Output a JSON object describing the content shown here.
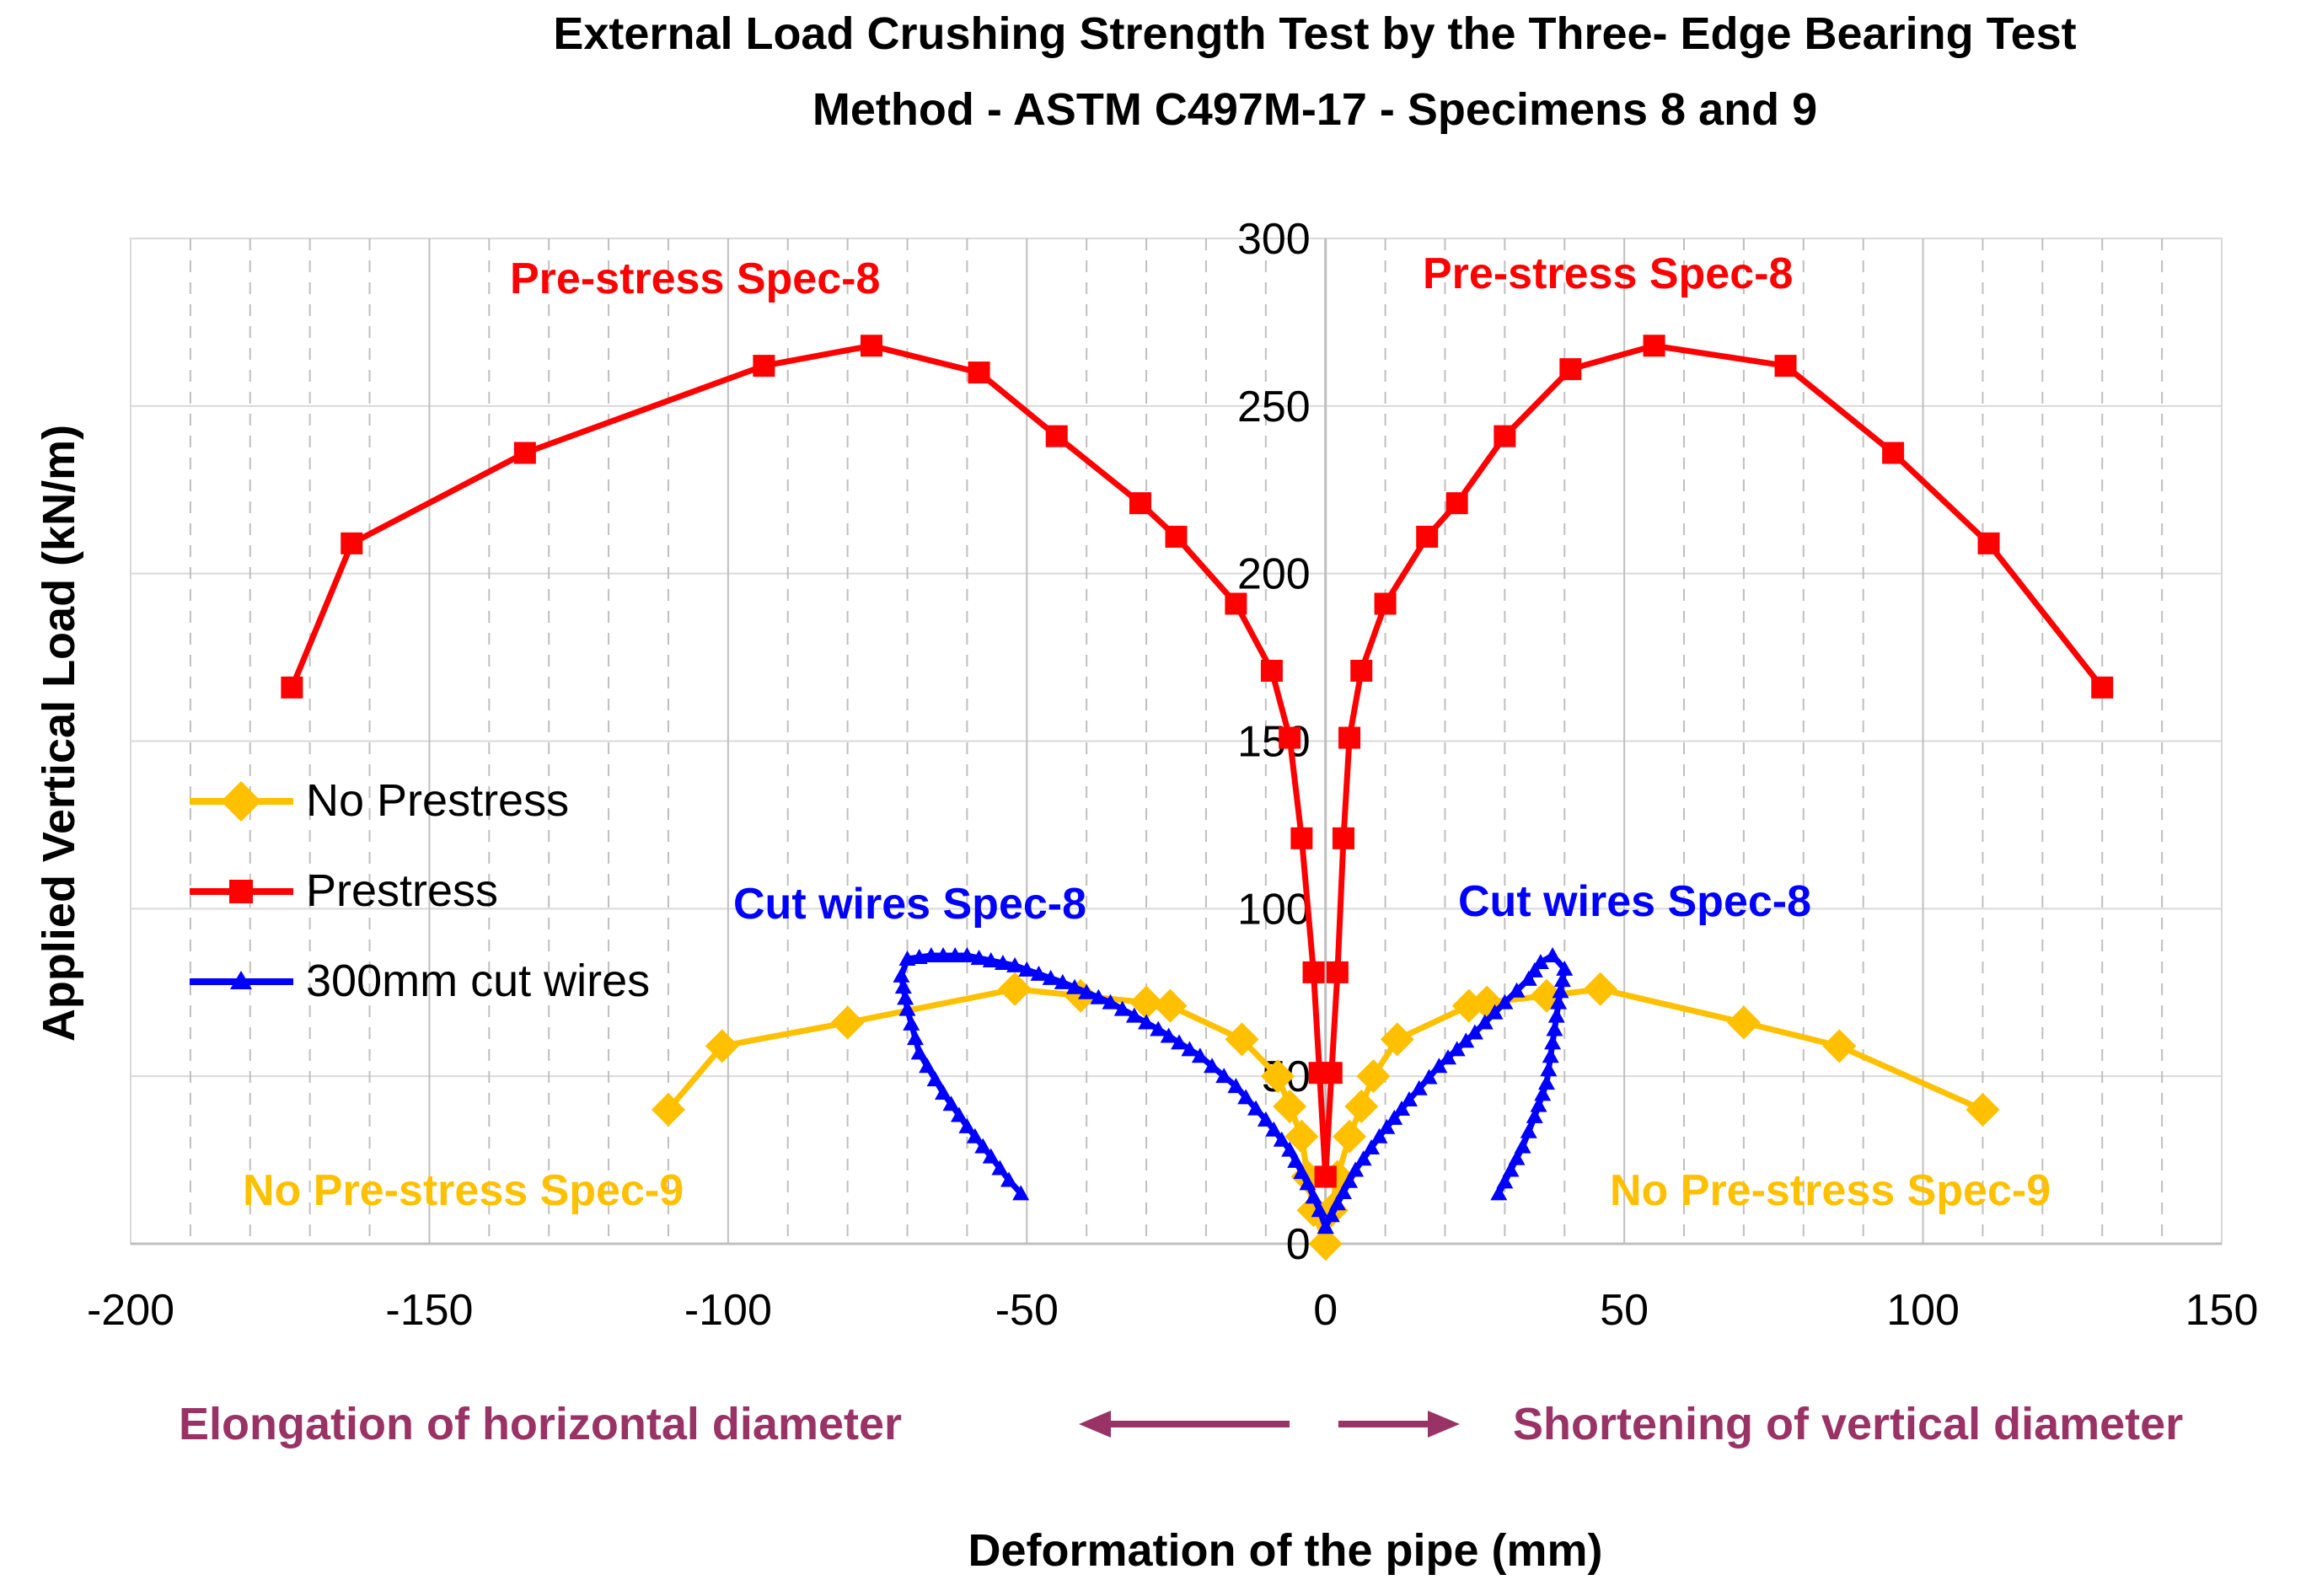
{
  "chart_data": {
    "type": "scatter",
    "title_line1": "External Load Crushing Strength Test by the Three- Edge Bearing Test",
    "title_line2": "Method - ASTM C497M-17 - Specimens 8 and 9",
    "xlabel": "Deformation of the pipe (mm)",
    "ylabel": "Applied Vertical Load (kN/m)",
    "xlim": [
      -200,
      150
    ],
    "ylim": [
      0,
      300
    ],
    "xticks": [
      -200,
      -150,
      -100,
      -50,
      0,
      50,
      100,
      150
    ],
    "yticks": [
      0,
      50,
      100,
      150,
      200,
      250,
      300
    ],
    "direction_left": "Elongation of horizontal diameter",
    "direction_right": "Shortening of vertical diameter",
    "annotations": {
      "prestress_left": "Pre-stress Spec-8",
      "prestress_right": "Pre-stress Spec-8",
      "cut_left": "Cut wires Spec-8",
      "cut_right": "Cut wires Spec-8",
      "noprestress_left": "No Pre-stress Spec-9",
      "noprestress_right": "No Pre-stress Spec-9"
    },
    "colors": {
      "no_prestress": "#FFC000",
      "prestress": "#FF0000",
      "cut_wires": "#0000FF",
      "direction": "#993366",
      "grid": "#BFBFBF"
    },
    "series": [
      {
        "name": "No Prestress",
        "marker": "diamond",
        "color": "#FFC000",
        "segments": [
          [
            [
              -110,
              40
            ],
            [
              -101,
              59
            ],
            [
              -80,
              66
            ],
            [
              -52,
              76
            ],
            [
              -41,
              74
            ],
            [
              -30,
              72
            ],
            [
              -26,
              71
            ],
            [
              -14,
              61
            ],
            [
              -8,
              50
            ],
            [
              -6,
              41
            ],
            [
              -4,
              32
            ],
            [
              -3,
              20
            ],
            [
              -2,
              10
            ],
            [
              0,
              0
            ]
          ],
          [
            [
              0,
              0
            ],
            [
              1,
              10
            ],
            [
              2,
              20
            ],
            [
              4,
              32
            ],
            [
              6,
              41
            ],
            [
              8,
              50
            ],
            [
              12,
              61
            ],
            [
              24,
              71
            ],
            [
              27,
              72
            ],
            [
              37,
              74
            ],
            [
              46,
              76
            ],
            [
              70,
              66
            ],
            [
              86,
              59
            ],
            [
              110,
              40
            ]
          ]
        ]
      },
      {
        "name": "Prestress",
        "marker": "square",
        "color": "#FF0000",
        "segments": [
          [
            [
              -173,
              166
            ],
            [
              -163,
              209
            ],
            [
              -134,
              236
            ],
            [
              -94,
              262
            ],
            [
              -76,
              268
            ],
            [
              -58,
              260
            ],
            [
              -45,
              241
            ],
            [
              -31,
              221
            ],
            [
              -25,
              211
            ],
            [
              -15,
              191
            ],
            [
              -9,
              171
            ],
            [
              -6,
              151
            ],
            [
              -4,
              121
            ],
            [
              -2,
              81
            ],
            [
              -1,
              51
            ],
            [
              0,
              20
            ]
          ],
          [
            [
              0,
              20
            ],
            [
              1,
              51
            ],
            [
              2,
              81
            ],
            [
              3,
              121
            ],
            [
              4,
              151
            ],
            [
              6,
              171
            ],
            [
              10,
              191
            ],
            [
              17,
              211
            ],
            [
              22,
              221
            ],
            [
              30,
              241
            ],
            [
              41,
              261
            ],
            [
              55,
              268
            ],
            [
              77,
              262
            ],
            [
              95,
              236
            ],
            [
              111,
              209
            ],
            [
              130,
              166
            ]
          ]
        ]
      },
      {
        "name": "300mm cut wires",
        "marker": "triangle",
        "color": "#0000FF",
        "segments": [
          [
            [
              0,
              5
            ],
            [
              -1,
              10
            ],
            [
              -3,
              18
            ],
            [
              -6,
              28
            ],
            [
              -10,
              37
            ],
            [
              -15,
              47
            ],
            [
              -21,
              56
            ],
            [
              -28,
              64
            ],
            [
              -36,
              72
            ],
            [
              -44,
              78
            ],
            [
              -52,
              83
            ],
            [
              -60,
              86
            ],
            [
              -66,
              86
            ],
            [
              -70,
              85
            ],
            [
              -71,
              80
            ],
            [
              -70,
              70
            ],
            [
              -68,
              57
            ],
            [
              -64,
              45
            ],
            [
              -60,
              35
            ],
            [
              -56,
              26
            ],
            [
              -53,
              19
            ],
            [
              -51,
              15
            ]
          ],
          [
            [
              0,
              5
            ],
            [
              2,
              12
            ],
            [
              5,
              22
            ],
            [
              9,
              32
            ],
            [
              14,
              43
            ],
            [
              19,
              53
            ],
            [
              25,
              63
            ],
            [
              30,
              72
            ],
            [
              34,
              79
            ],
            [
              36,
              84
            ],
            [
              38,
              86
            ],
            [
              40,
              82
            ],
            [
              39,
              72
            ],
            [
              38,
              60
            ],
            [
              37,
              48
            ],
            [
              35,
              38
            ],
            [
              33,
              29
            ],
            [
              31,
              22
            ],
            [
              29,
              15
            ]
          ]
        ]
      }
    ]
  }
}
